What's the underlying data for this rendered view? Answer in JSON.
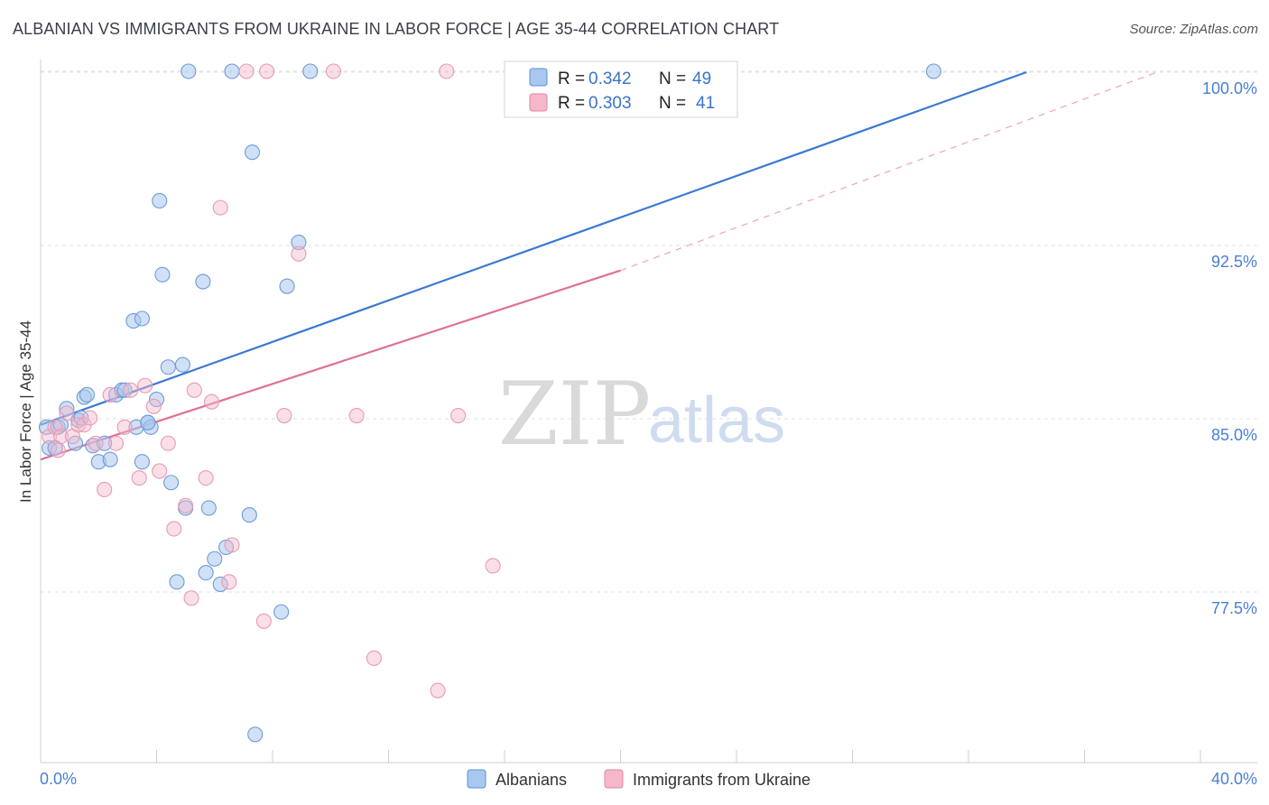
{
  "header": {
    "title": "ALBANIAN VS IMMIGRANTS FROM UKRAINE IN LABOR FORCE | AGE 35-44 CORRELATION CHART",
    "source": "Source: ZipAtlas.com"
  },
  "watermark": {
    "zip": "ZIP",
    "atlas": "atlas"
  },
  "legend": {
    "r_label": "R =",
    "n_label": "N =",
    "rows": [
      {
        "r": "0.342",
        "n": "49",
        "color": "#a9c8ef"
      },
      {
        "r": "0.303",
        "n": "41",
        "color": "#f5b7c9"
      }
    ]
  },
  "chart_data": {
    "type": "scatter",
    "title": "ALBANIAN VS IMMIGRANTS FROM UKRAINE IN LABOR FORCE | AGE 35-44 CORRELATION CHART",
    "ylabel": "In Labor Force | Age 35-44",
    "xlabel": "",
    "xlim": [
      0,
      40
    ],
    "ylim": [
      70.5,
      101
    ],
    "x_tick_labels": [
      "0.0%",
      "40.0%"
    ],
    "y_ticks": [
      77.5,
      85.0,
      92.5,
      100.0
    ],
    "y_tick_labels": [
      "77.5%",
      "85.0%",
      "92.5%",
      "100.0%"
    ],
    "grid": true,
    "legend_position": "top-center",
    "colors": {
      "albanians": "#3a78d4",
      "ukraine": "#e06f99"
    },
    "series": [
      {
        "name": "Albanians",
        "r": 0.342,
        "n": 49,
        "trend": {
          "x1": 0,
          "y1": 85.4,
          "x2": 34,
          "y2": 100.0
        },
        "points": [
          [
            0.2,
            85.3
          ],
          [
            0.3,
            84.4
          ],
          [
            0.5,
            84.4
          ],
          [
            0.6,
            85.3
          ],
          [
            0.7,
            85.4
          ],
          [
            0.9,
            86.1
          ],
          [
            1.2,
            84.6
          ],
          [
            1.3,
            85.6
          ],
          [
            1.4,
            85.7
          ],
          [
            1.5,
            86.6
          ],
          [
            1.6,
            86.7
          ],
          [
            1.8,
            84.5
          ],
          [
            2.0,
            83.8
          ],
          [
            2.2,
            84.6
          ],
          [
            2.4,
            83.9
          ],
          [
            2.6,
            86.7
          ],
          [
            2.8,
            86.9
          ],
          [
            2.9,
            86.9
          ],
          [
            3.2,
            89.9
          ],
          [
            3.3,
            85.3
          ],
          [
            3.5,
            90.0
          ],
          [
            3.5,
            83.8
          ],
          [
            3.7,
            85.5
          ],
          [
            3.8,
            85.3
          ],
          [
            4.0,
            86.5
          ],
          [
            4.1,
            95.1
          ],
          [
            4.2,
            91.9
          ],
          [
            4.4,
            87.9
          ],
          [
            4.5,
            82.9
          ],
          [
            4.7,
            78.6
          ],
          [
            4.9,
            88.0
          ],
          [
            5.0,
            81.8
          ],
          [
            5.1,
            100.1
          ],
          [
            5.6,
            91.6
          ],
          [
            5.7,
            79.0
          ],
          [
            5.8,
            81.8
          ],
          [
            6.0,
            79.6
          ],
          [
            6.2,
            78.5
          ],
          [
            6.4,
            80.1
          ],
          [
            6.6,
            100.1
          ],
          [
            7.2,
            81.5
          ],
          [
            7.3,
            97.2
          ],
          [
            7.4,
            72.0
          ],
          [
            8.3,
            77.3
          ],
          [
            8.5,
            91.4
          ],
          [
            8.9,
            93.3
          ],
          [
            9.3,
            100.1
          ],
          [
            30.8,
            100.1
          ],
          [
            3.7,
            85.5
          ]
        ]
      },
      {
        "name": "Immigrants from Ukraine",
        "r": 0.303,
        "n": 41,
        "trend": {
          "x1": 0,
          "y1": 83.9,
          "x2": 20,
          "y2": 92.2
        },
        "trend_ext": {
          "x1": 20,
          "y1": 92.2,
          "x2": 38.5,
          "y2": 100.0
        },
        "points": [
          [
            0.3,
            84.9
          ],
          [
            0.5,
            85.3
          ],
          [
            0.6,
            84.3
          ],
          [
            0.7,
            84.9
          ],
          [
            0.9,
            85.9
          ],
          [
            1.1,
            84.9
          ],
          [
            1.3,
            85.4
          ],
          [
            1.5,
            85.4
          ],
          [
            1.7,
            85.7
          ],
          [
            1.9,
            84.6
          ],
          [
            2.2,
            82.6
          ],
          [
            2.4,
            86.7
          ],
          [
            2.6,
            84.6
          ],
          [
            2.9,
            85.3
          ],
          [
            3.1,
            86.9
          ],
          [
            3.4,
            83.1
          ],
          [
            3.6,
            87.1
          ],
          [
            3.9,
            86.2
          ],
          [
            4.1,
            83.4
          ],
          [
            4.4,
            84.6
          ],
          [
            4.6,
            80.9
          ],
          [
            5.0,
            81.9
          ],
          [
            5.2,
            77.9
          ],
          [
            5.3,
            86.9
          ],
          [
            5.7,
            83.1
          ],
          [
            5.9,
            86.4
          ],
          [
            6.2,
            94.8
          ],
          [
            6.5,
            78.6
          ],
          [
            6.6,
            80.2
          ],
          [
            7.1,
            100.1
          ],
          [
            7.8,
            100.1
          ],
          [
            8.4,
            85.8
          ],
          [
            7.7,
            76.9
          ],
          [
            8.9,
            92.8
          ],
          [
            10.1,
            100.1
          ],
          [
            10.9,
            85.8
          ],
          [
            11.5,
            75.3
          ],
          [
            13.7,
            73.9
          ],
          [
            14.0,
            100.1
          ],
          [
            14.4,
            85.8
          ],
          [
            15.6,
            79.3
          ]
        ]
      }
    ]
  },
  "bottom_legend": [
    {
      "label": "Albanians",
      "color": "#a9c8ef"
    },
    {
      "label": "Immigrants from Ukraine",
      "color": "#f5b7c9"
    }
  ]
}
